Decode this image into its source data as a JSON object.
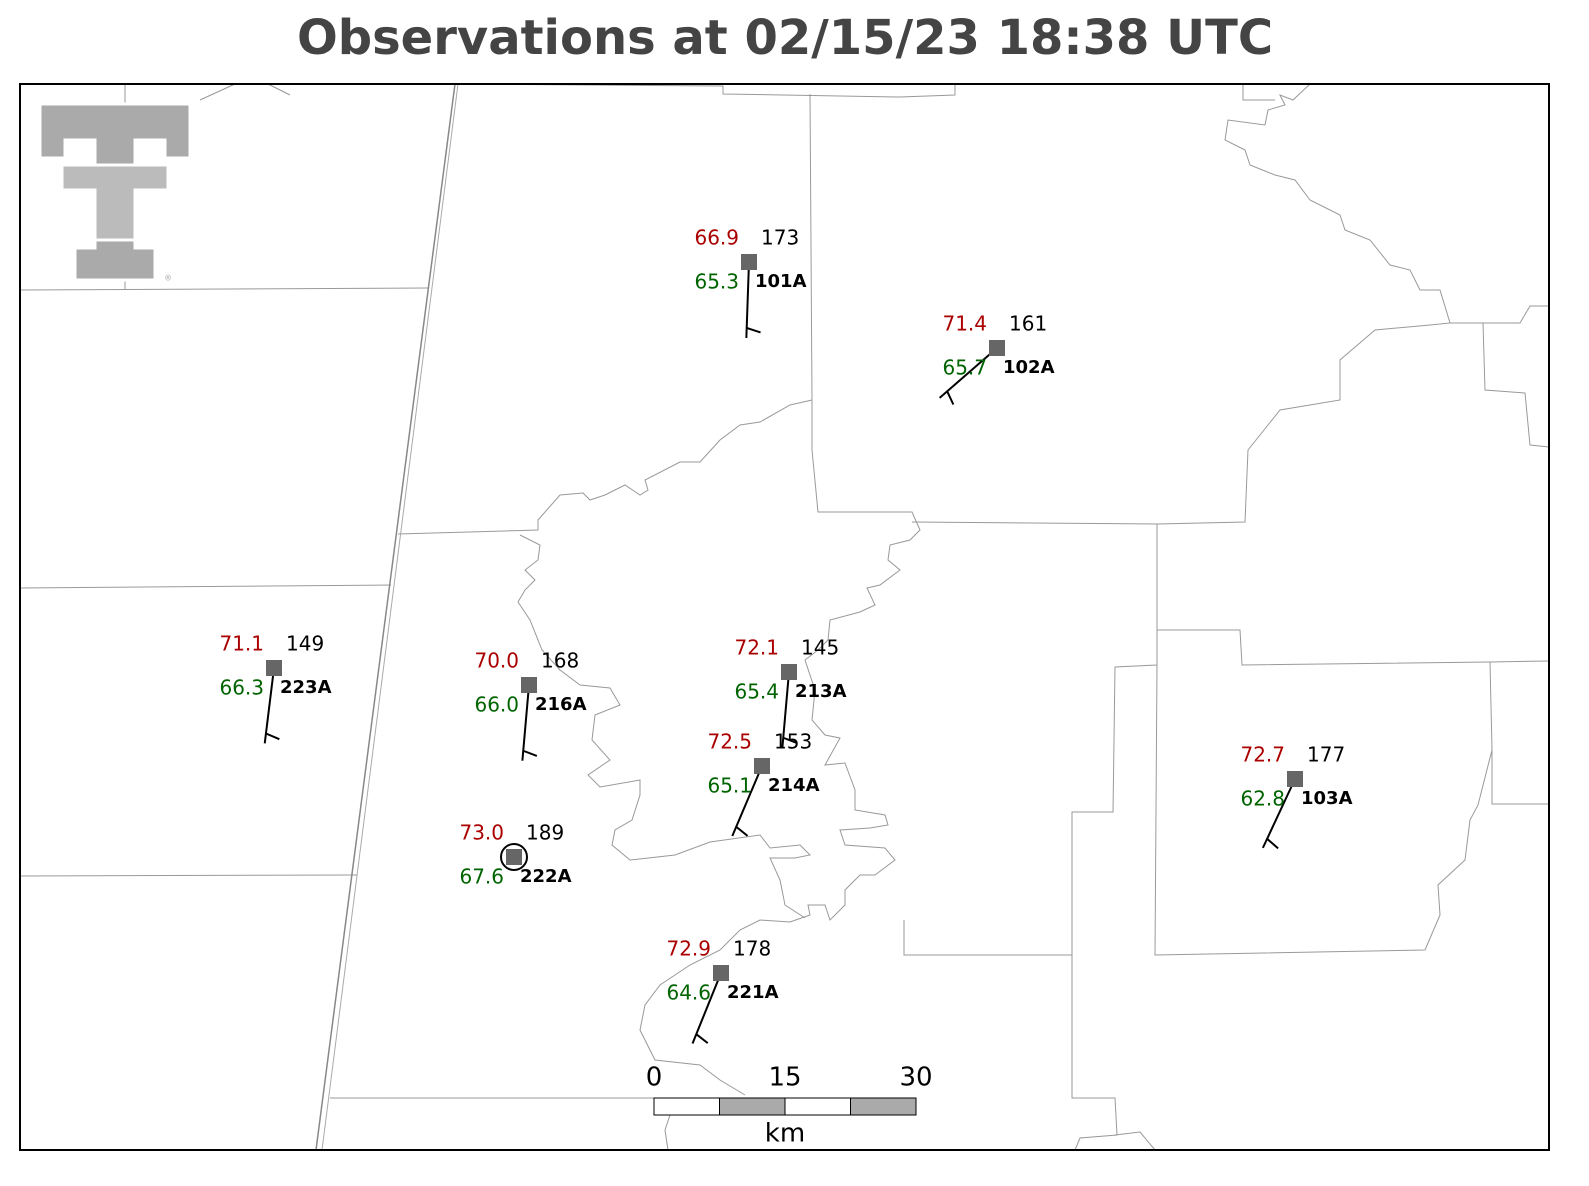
{
  "title": "Observations at 02/15/23 18:38 UTC",
  "stations": [
    {
      "id": "101A",
      "temperature": 66.9,
      "dewpoint": 65.3,
      "pressure": 173,
      "wind_direction": 182,
      "wind_speed": 5
    },
    {
      "id": "102A",
      "temperature": 71.4,
      "dewpoint": 65.7,
      "pressure": 161,
      "wind_direction": 229,
      "wind_speed": 5
    },
    {
      "id": "223A",
      "temperature": 71.1,
      "dewpoint": 66.3,
      "pressure": 149,
      "wind_direction": 187,
      "wind_speed": 5
    },
    {
      "id": "216A",
      "temperature": 70.0,
      "dewpoint": 66.0,
      "pressure": 168,
      "wind_direction": 185,
      "wind_speed": 5
    },
    {
      "id": "213A",
      "temperature": 72.1,
      "dewpoint": 65.4,
      "pressure": 145,
      "wind_direction": 185,
      "wind_speed": 5
    },
    {
      "id": "214A",
      "temperature": 72.5,
      "dewpoint": 65.1,
      "pressure": 153,
      "wind_direction": 203,
      "wind_speed": 5
    },
    {
      "id": "222A",
      "temperature": 73.0,
      "dewpoint": 67.6,
      "pressure": 189,
      "wind_direction": null,
      "wind_speed": 0
    },
    {
      "id": "221A",
      "temperature": 72.9,
      "dewpoint": 64.6,
      "pressure": 178,
      "wind_direction": 202,
      "wind_speed": 5
    },
    {
      "id": "103A",
      "temperature": 72.7,
      "dewpoint": 62.8,
      "pressure": 177,
      "wind_direction": 205,
      "wind_speed": 5
    }
  ],
  "scale_bar": {
    "ticks": [
      0,
      15,
      30
    ],
    "unit": "km"
  }
}
